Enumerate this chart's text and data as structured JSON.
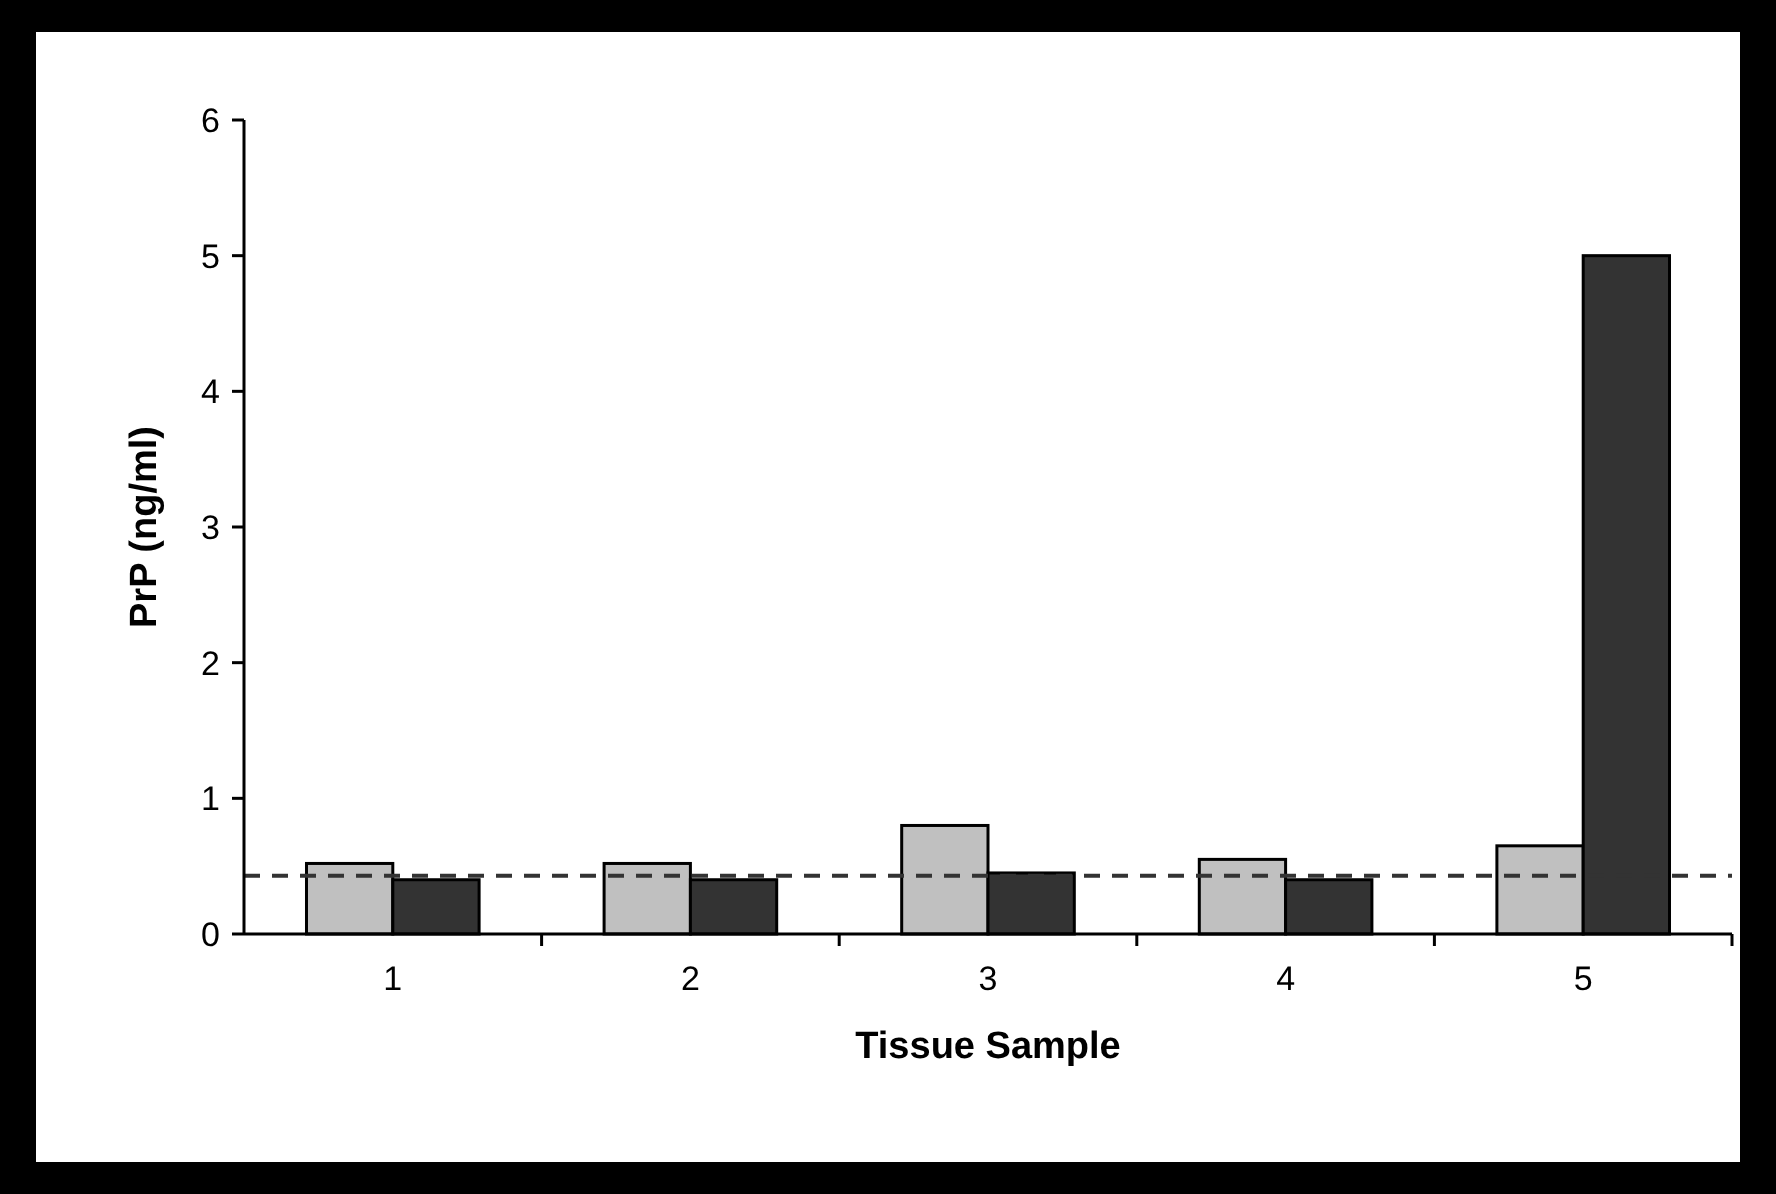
{
  "chart_data": {
    "type": "bar",
    "xlabel": "Tissue Sample",
    "ylabel": "PrP (ng/ml)",
    "categories": [
      "1",
      "2",
      "3",
      "4",
      "5"
    ],
    "series": [
      {
        "color": "#c0c0c0",
        "values": [
          0.52,
          0.52,
          0.8,
          0.55,
          0.65
        ]
      },
      {
        "color": "#333333",
        "values": [
          0.4,
          0.4,
          0.45,
          0.4,
          5.0
        ]
      }
    ],
    "ylim": [
      0,
      6
    ],
    "yticks": [
      0,
      1,
      2,
      3,
      4,
      5,
      6
    ],
    "grid": false,
    "ref_lines": [
      {
        "axis": "y",
        "value": 0.43,
        "color": "#333333",
        "line_style": "dashed"
      }
    ]
  }
}
